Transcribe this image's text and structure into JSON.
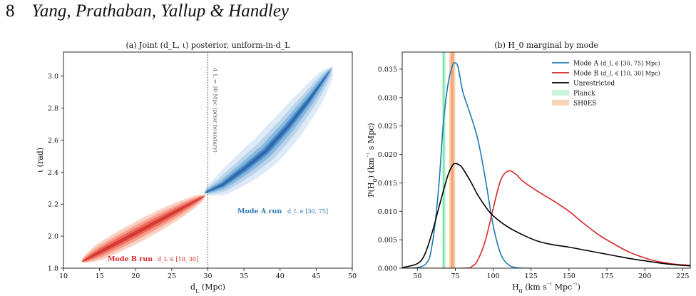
{
  "header": {
    "page_number": "8",
    "authors": "Yang, Prathaban, Yallup & Handley"
  },
  "chart_data": [
    {
      "type": "contour",
      "title": "(a) Joint (d_L, ι) posterior, uniform-in-d_L",
      "xlabel": "d_L (Mpc)",
      "ylabel": "ι (rad)",
      "xlim": [
        10,
        50
      ],
      "ylim": [
        1.8,
        3.15
      ],
      "xticks": [
        "10",
        "15",
        "20",
        "25",
        "30",
        "35",
        "40",
        "45",
        "50"
      ],
      "yticks": [
        "1.8",
        "2.0",
        "2.2",
        "2.4",
        "2.6",
        "2.8",
        "3.0"
      ],
      "prior_boundary": {
        "x": 30,
        "label": "d_L = 30 Mpc (prior boundary)"
      },
      "series": [
        {
          "name": "Mode B run",
          "range_label": "d_L ∈ [10, 30]",
          "color": "#d62728",
          "fills": [
            "#fbd0c2",
            "#f7a08e",
            "#ee6a5b",
            "#d33a35"
          ],
          "centerline": [
            [
              12.5,
              1.84
            ],
            [
              15,
              1.9
            ],
            [
              20,
              2.02
            ],
            [
              25,
              2.14
            ],
            [
              29.5,
              2.25
            ]
          ]
        },
        {
          "name": "Mode A run",
          "range_label": "d_L ∈ [30, 75]",
          "color": "#2c7bb6",
          "fills": [
            "#deebf7",
            "#b9d4ec",
            "#88b9dd",
            "#4d8fcc",
            "#2f67aa"
          ],
          "centerline": [
            [
              29.5,
              2.27
            ],
            [
              32,
              2.32
            ],
            [
              35,
              2.42
            ],
            [
              38,
              2.53
            ],
            [
              41,
              2.68
            ],
            [
              44,
              2.85
            ],
            [
              47,
              3.04
            ]
          ]
        }
      ]
    },
    {
      "type": "line",
      "title": "(b) H_0 marginal by mode",
      "xlabel": "H_0 (km s⁻¹ Mpc⁻¹)",
      "ylabel": "P(H_0) (km⁻¹ s Mpc)",
      "xlim": [
        40,
        230
      ],
      "ylim": [
        0,
        0.038
      ],
      "xticks": [
        50,
        75,
        100,
        125,
        150,
        175,
        200,
        225
      ],
      "yticks": [
        0,
        0.005,
        0.01,
        0.015,
        0.02,
        0.025,
        0.03,
        0.035
      ],
      "ytick_labels": [
        "0.000",
        "0.005",
        "0.010",
        "0.015",
        "0.020",
        "0.025",
        "0.030",
        "0.035"
      ],
      "legend": "top-right",
      "bands": [
        {
          "name": "Planck",
          "center": 67.4,
          "inner": [
            66.9,
            67.9
          ],
          "outer": [
            66.2,
            68.6
          ],
          "inner_color": "#7ce6a8",
          "outer_color": "#c8f5da"
        },
        {
          "name": "SH0ES",
          "center": 73.0,
          "inner": [
            72.0,
            74.0
          ],
          "outer": [
            71.0,
            75.0
          ],
          "inner_color": "#f3a977",
          "outer_color": "#f9d3b7"
        }
      ],
      "series": [
        {
          "name": "Mode A",
          "range_label": "(d_L ∈ [30, 75] Mpc)",
          "color": "#1f77b4",
          "x": [
            40,
            55,
            60,
            64,
            67,
            70,
            73,
            75,
            77,
            80,
            85,
            90,
            95,
            100,
            105,
            110,
            115,
            120,
            125
          ],
          "y": [
            0,
            0.0006,
            0.0045,
            0.014,
            0.025,
            0.032,
            0.0355,
            0.0361,
            0.0352,
            0.031,
            0.027,
            0.0225,
            0.0155,
            0.0075,
            0.0025,
            0.0006,
            0.0001,
            0,
            0
          ]
        },
        {
          "name": "Mode B",
          "range_label": "(d_L ∈ [10, 30] Mpc)",
          "color": "#d62728",
          "x": [
            40,
            80,
            86,
            90,
            95,
            100,
            105,
            110,
            115,
            120,
            130,
            140,
            150,
            160,
            170,
            180,
            190,
            200,
            210,
            220,
            230
          ],
          "y": [
            0,
            0,
            0.0003,
            0.0015,
            0.005,
            0.0105,
            0.0155,
            0.0171,
            0.0165,
            0.0152,
            0.0134,
            0.0118,
            0.01,
            0.0078,
            0.0058,
            0.0042,
            0.0028,
            0.0018,
            0.0011,
            0.0007,
            0.0005
          ]
        },
        {
          "name": "Unrestricted",
          "range_label": "",
          "color": "#000000",
          "x": [
            40,
            50,
            55,
            60,
            65,
            70,
            73,
            75,
            78,
            80,
            85,
            90,
            95,
            100,
            110,
            120,
            130,
            140,
            150,
            160,
            170,
            180,
            190,
            200,
            210,
            220,
            230
          ],
          "y": [
            0.0001,
            0.0008,
            0.0025,
            0.0065,
            0.0115,
            0.0162,
            0.018,
            0.0184,
            0.0181,
            0.0175,
            0.0153,
            0.0128,
            0.0108,
            0.0092,
            0.0072,
            0.0058,
            0.0047,
            0.0041,
            0.0037,
            0.0032,
            0.0027,
            0.0022,
            0.0017,
            0.0013,
            0.0009,
            0.0006,
            0.0004
          ]
        }
      ]
    }
  ]
}
